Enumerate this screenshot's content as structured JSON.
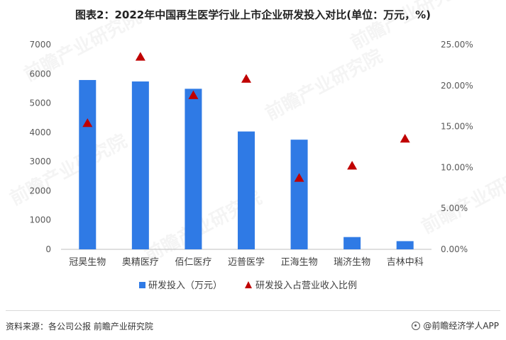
{
  "chart_data": {
    "type": "bar",
    "title": "图表2：2022年中国再生医学行业上市企业研发投入对比(单位：万元，%)",
    "categories": [
      "冠昊生物",
      "奥精医疗",
      "佰仁医疗",
      "迈普医学",
      "正海生物",
      "瑞济生物",
      "吉林中科"
    ],
    "series": [
      {
        "name": "研发投入（万元）",
        "kind": "bar",
        "axis": "left",
        "color": "#2f7ae5",
        "values": [
          5790,
          5740,
          5490,
          4030,
          3750,
          420,
          280
        ]
      },
      {
        "name": "研发投入占营业收入比例",
        "kind": "marker",
        "marker": "triangle",
        "axis": "right",
        "color": "#c00000",
        "values": [
          15.4,
          23.5,
          18.8,
          20.8,
          8.7,
          10.2,
          13.5
        ]
      }
    ],
    "y_left": {
      "min": 0,
      "max": 7000,
      "ticks": [
        "0",
        "1000",
        "2000",
        "3000",
        "4000",
        "5000",
        "6000",
        "7000"
      ]
    },
    "y_right": {
      "min": 0,
      "max": 25,
      "ticks": [
        "0.00%",
        "5.00%",
        "10.00%",
        "15.00%",
        "20.00%",
        "25.00%"
      ]
    },
    "grid": false,
    "legend_position": "bottom"
  },
  "footer": {
    "source": "资料来源：各公司公报 前瞻产业研究院",
    "brand": "@前瞻经济学人APP"
  },
  "watermark": "前瞻产业研究院"
}
